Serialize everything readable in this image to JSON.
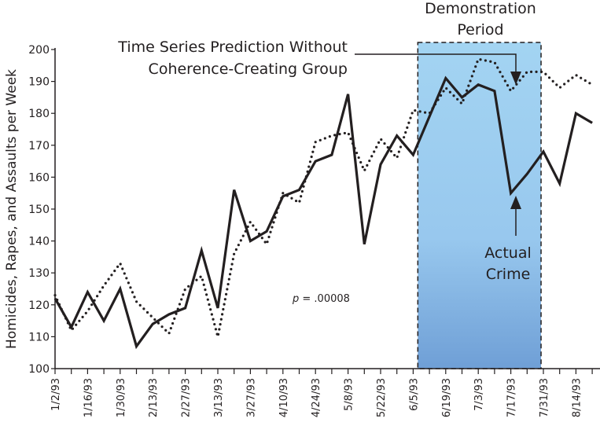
{
  "chart_data": {
    "type": "line",
    "title": "",
    "xlabel": "",
    "ylabel": "Homicides, Rapes, and Assaults per Week",
    "ylim": [
      100,
      200
    ],
    "yticks": [
      100,
      110,
      120,
      130,
      140,
      150,
      160,
      170,
      180,
      190,
      200
    ],
    "grid": false,
    "x": [
      "1/2/93",
      "1/9/93",
      "1/16/93",
      "1/23/93",
      "1/30/93",
      "2/6/93",
      "2/13/93",
      "2/20/93",
      "2/27/93",
      "3/6/93",
      "3/13/93",
      "3/20/93",
      "3/27/93",
      "4/3/93",
      "4/10/93",
      "4/17/93",
      "4/24/93",
      "5/1/93",
      "5/8/93",
      "5/15/93",
      "5/22/93",
      "5/29/93",
      "6/5/93",
      "6/12/93",
      "6/19/93",
      "6/26/93",
      "7/3/93",
      "7/10/93",
      "7/17/93",
      "7/24/93",
      "7/31/93",
      "8/7/93",
      "8/14/93",
      "8/21/93"
    ],
    "xtick_labels": [
      "1/2/93",
      "1/16/93",
      "1/30/93",
      "2/13/93",
      "2/27/93",
      "3/13/93",
      "3/27/93",
      "4/10/93",
      "4/24/93",
      "5/8/93",
      "5/22/93",
      "6/5/93",
      "6/19/93",
      "7/3/93",
      "7/17/93",
      "7/31/93",
      "8/14/93"
    ],
    "series": [
      {
        "name": "Actual Crime",
        "style": "solid",
        "color": "#231f20",
        "values": [
          122,
          113,
          124,
          115,
          125,
          107,
          114,
          117,
          119,
          137,
          119,
          156,
          140,
          143,
          154,
          156,
          165,
          167,
          186,
          139,
          164,
          173,
          167,
          179,
          191,
          185,
          189,
          187,
          155,
          161,
          168,
          158,
          180,
          177
        ]
      },
      {
        "name": "Time Series Prediction Without Coherence-Creating Group",
        "style": "dotted",
        "color": "#231f20",
        "values": [
          123,
          112,
          118,
          126,
          133,
          121,
          116,
          111,
          125,
          129,
          110,
          136,
          146,
          139,
          155,
          152,
          171,
          173,
          174,
          162,
          172,
          166,
          181,
          180,
          188,
          183,
          197,
          196,
          187,
          193,
          193,
          188,
          192,
          189
        ]
      }
    ],
    "shaded_region": {
      "label_line1": "Demonstration",
      "label_line2": "Period",
      "start": "6/7/93",
      "end": "7/30/93",
      "color_top": "#a3d4f2",
      "color_bottom": "#6f9fd6"
    },
    "annotations": {
      "prediction_line1": "Time Series Prediction Without",
      "prediction_line2": "Coherence-Creating Group",
      "actual_line1": "Actual",
      "actual_line2": "Crime",
      "p_label": "p",
      "p_value": " = .00008"
    }
  }
}
